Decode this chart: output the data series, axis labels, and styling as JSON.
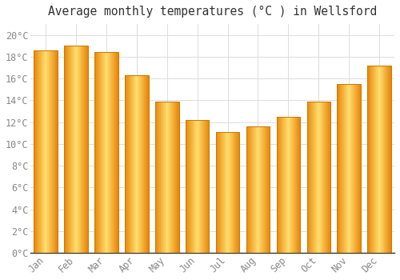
{
  "title": "Average monthly temperatures (°C ) in Wellsford",
  "months": [
    "Jan",
    "Feb",
    "Mar",
    "Apr",
    "May",
    "Jun",
    "Jul",
    "Aug",
    "Sep",
    "Oct",
    "Nov",
    "Dec"
  ],
  "values": [
    18.6,
    19.0,
    18.4,
    16.3,
    13.9,
    12.2,
    11.1,
    11.6,
    12.5,
    13.9,
    15.5,
    17.2
  ],
  "bar_color_main": "#FFC020",
  "bar_color_light": "#FFD870",
  "bar_color_dark": "#E8890A",
  "bar_edge_color": "#C87800",
  "background_color": "#FFFFFF",
  "grid_color": "#DDDDDD",
  "text_color": "#888888",
  "axis_color": "#333333",
  "ylim": [
    0,
    21
  ],
  "ytick_step": 2,
  "title_fontsize": 10.5,
  "tick_fontsize": 8.5,
  "bar_width": 0.78
}
